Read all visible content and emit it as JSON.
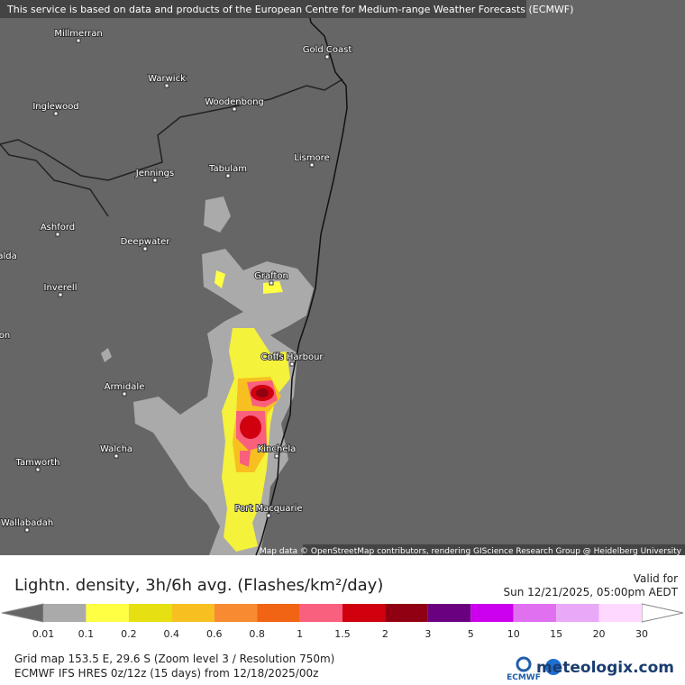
{
  "header": {
    "notice": "This service is based on data and products of the European Centre for Medium-range Weather Forecasts (ECMWF)"
  },
  "map": {
    "places": [
      "Millmerran",
      "Gold Coast",
      "Warwick",
      "Inglewood",
      "Woodenbong",
      "Jennings",
      "Tabulam",
      "Lismore",
      "Ashford",
      "Deepwater",
      "alda",
      "Grafton",
      "Inverell",
      "on",
      "Coffs Harbour",
      "Armidale",
      "Walcha",
      "Kinchela",
      "Tamworth",
      "Port Macquarie",
      "Wallabadah"
    ],
    "attribution": "Map data © OpenStreetMap contributors, rendering GIScience Research Group @ Heidelberg University"
  },
  "legend": {
    "title": "Lightn. density, 3h/6h avg. (Flashes/km²/day)",
    "valid_label": "Valid for",
    "valid_time": "Sun 12/21/2025, 05:00pm AEDT",
    "labels": [
      "0.01",
      "0.1",
      "0.2",
      "0.4",
      "0.6",
      "0.8",
      "1",
      "1.5",
      "2",
      "3",
      "5",
      "10",
      "15",
      "20",
      "30"
    ],
    "colors": [
      "#aaaaaa",
      "#ffff44",
      "#e6e012",
      "#f7c020",
      "#f88a32",
      "#f06414",
      "#f8607e",
      "#d0000e",
      "#900012",
      "#6a0080",
      "#cc00ee",
      "#e070f0",
      "#eaa8f8",
      "#ffd8ff"
    ]
  },
  "footer": {
    "grid": "Grid map 153.5 E, 29.6 S (Zoom level 3 / Resolution 750m)",
    "model": "ECMWF IFS HRES 0z/12z (15 days) from 12/18/2025/00z",
    "ecmwf": "ECMWF",
    "brand": "meteologix.com"
  }
}
